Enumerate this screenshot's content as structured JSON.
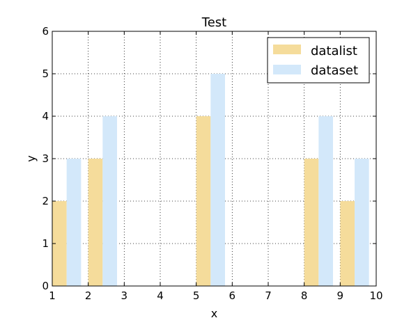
{
  "chart_data": {
    "type": "bar",
    "title": "Test",
    "xlabel": "x",
    "ylabel": "y",
    "xlim": [
      1,
      10
    ],
    "ylim": [
      0,
      6
    ],
    "xticks": [
      "1",
      "2",
      "3",
      "4",
      "5",
      "6",
      "7",
      "8",
      "9",
      "10"
    ],
    "yticks": [
      "0",
      "1",
      "2",
      "3",
      "4",
      "5",
      "6"
    ],
    "grid": true,
    "legend_position": "top-right",
    "series": [
      {
        "name": "datalist",
        "color": "#f5dc9b",
        "points": [
          {
            "x": 1,
            "y": 2
          },
          {
            "x": 2,
            "y": 3
          },
          {
            "x": 5,
            "y": 4
          },
          {
            "x": 8,
            "y": 3
          },
          {
            "x": 9,
            "y": 2
          }
        ]
      },
      {
        "name": "dataset",
        "color": "#d3e8fa",
        "points": [
          {
            "x": 1.4,
            "y": 3
          },
          {
            "x": 2.4,
            "y": 4
          },
          {
            "x": 5.4,
            "y": 5
          },
          {
            "x": 8.4,
            "y": 4
          },
          {
            "x": 9.4,
            "y": 3
          }
        ]
      }
    ]
  }
}
